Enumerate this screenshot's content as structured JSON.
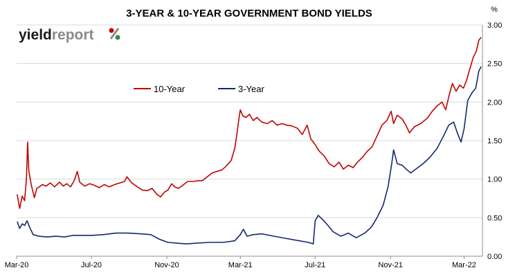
{
  "logo": {
    "part1": "yield",
    "part2": "report",
    "symbol": "%"
  },
  "colors": {
    "ten_year": "#c00000",
    "three_year": "#0f2a6b",
    "grid": "#d9d9d9",
    "logo_red": "#c00000",
    "logo_green": "#3a8a3a"
  },
  "chart_data": {
    "type": "line",
    "title": "3-YEAR & 10-YEAR GOVERNMENT BOND YIELDS",
    "unit_label": "%",
    "y_axis_side": "right",
    "ylim": [
      0,
      3.0
    ],
    "y_ticks": [
      "0.00",
      "0.50",
      "1.00",
      "1.50",
      "2.00",
      "2.50",
      "3.00"
    ],
    "x_ticks": [
      "Mar-20",
      "Jul-20",
      "Nov-20",
      "Mar-21",
      "Jul-21",
      "Nov-21",
      "Mar-22"
    ],
    "xlim": [
      "2020-03-01",
      "2022-03-31"
    ],
    "grid": "horizontal",
    "legend_position": "top-center",
    "series": [
      {
        "name": "10-Year",
        "points": [
          [
            "2020-03-02",
            0.8
          ],
          [
            "2020-03-06",
            0.62
          ],
          [
            "2020-03-10",
            0.78
          ],
          [
            "2020-03-14",
            0.72
          ],
          [
            "2020-03-17",
            1.0
          ],
          [
            "2020-03-19",
            1.48
          ],
          [
            "2020-03-21",
            1.1
          ],
          [
            "2020-03-25",
            0.92
          ],
          [
            "2020-03-30",
            0.76
          ],
          [
            "2020-04-03",
            0.88
          ],
          [
            "2020-04-07",
            0.9
          ],
          [
            "2020-04-12",
            0.93
          ],
          [
            "2020-04-18",
            0.91
          ],
          [
            "2020-04-25",
            0.95
          ],
          [
            "2020-05-02",
            0.9
          ],
          [
            "2020-05-10",
            0.96
          ],
          [
            "2020-05-16",
            0.91
          ],
          [
            "2020-05-22",
            0.94
          ],
          [
            "2020-05-28",
            0.9
          ],
          [
            "2020-06-03",
            0.98
          ],
          [
            "2020-06-08",
            1.1
          ],
          [
            "2020-06-12",
            0.96
          ],
          [
            "2020-06-20",
            0.91
          ],
          [
            "2020-06-28",
            0.94
          ],
          [
            "2020-07-06",
            0.92
          ],
          [
            "2020-07-14",
            0.89
          ],
          [
            "2020-07-22",
            0.93
          ],
          [
            "2020-07-30",
            0.9
          ],
          [
            "2020-08-08",
            0.93
          ],
          [
            "2020-08-16",
            0.95
          ],
          [
            "2020-08-24",
            0.97
          ],
          [
            "2020-08-28",
            1.03
          ],
          [
            "2020-09-05",
            0.95
          ],
          [
            "2020-09-14",
            0.9
          ],
          [
            "2020-09-22",
            0.86
          ],
          [
            "2020-09-30",
            0.85
          ],
          [
            "2020-10-08",
            0.88
          ],
          [
            "2020-10-16",
            0.8
          ],
          [
            "2020-10-22",
            0.77
          ],
          [
            "2020-10-28",
            0.83
          ],
          [
            "2020-11-03",
            0.86
          ],
          [
            "2020-11-09",
            0.94
          ],
          [
            "2020-11-14",
            0.9
          ],
          [
            "2020-11-20",
            0.88
          ],
          [
            "2020-11-27",
            0.92
          ],
          [
            "2020-12-05",
            0.97
          ],
          [
            "2020-12-14",
            0.97
          ],
          [
            "2020-12-22",
            0.98
          ],
          [
            "2020-12-29",
            0.98
          ],
          [
            "2021-01-06",
            1.03
          ],
          [
            "2021-01-14",
            1.08
          ],
          [
            "2021-01-22",
            1.1
          ],
          [
            "2021-01-30",
            1.12
          ],
          [
            "2021-02-06",
            1.17
          ],
          [
            "2021-02-14",
            1.24
          ],
          [
            "2021-02-20",
            1.4
          ],
          [
            "2021-02-24",
            1.62
          ],
          [
            "2021-02-27",
            1.8
          ],
          [
            "2021-03-01",
            1.9
          ],
          [
            "2021-03-05",
            1.82
          ],
          [
            "2021-03-10",
            1.8
          ],
          [
            "2021-03-16",
            1.84
          ],
          [
            "2021-03-22",
            1.76
          ],
          [
            "2021-03-28",
            1.8
          ],
          [
            "2021-04-05",
            1.74
          ],
          [
            "2021-04-14",
            1.72
          ],
          [
            "2021-04-22",
            1.76
          ],
          [
            "2021-04-30",
            1.7
          ],
          [
            "2021-05-08",
            1.72
          ],
          [
            "2021-05-16",
            1.7
          ],
          [
            "2021-05-24",
            1.69
          ],
          [
            "2021-06-02",
            1.66
          ],
          [
            "2021-06-10",
            1.58
          ],
          [
            "2021-06-18",
            1.7
          ],
          [
            "2021-06-24",
            1.52
          ],
          [
            "2021-06-30",
            1.46
          ],
          [
            "2021-07-08",
            1.36
          ],
          [
            "2021-07-16",
            1.3
          ],
          [
            "2021-07-24",
            1.2
          ],
          [
            "2021-08-01",
            1.16
          ],
          [
            "2021-08-09",
            1.22
          ],
          [
            "2021-08-16",
            1.13
          ],
          [
            "2021-08-24",
            1.18
          ],
          [
            "2021-09-01",
            1.15
          ],
          [
            "2021-09-08",
            1.22
          ],
          [
            "2021-09-16",
            1.28
          ],
          [
            "2021-09-24",
            1.36
          ],
          [
            "2021-10-02",
            1.42
          ],
          [
            "2021-10-10",
            1.56
          ],
          [
            "2021-10-18",
            1.7
          ],
          [
            "2021-10-26",
            1.76
          ],
          [
            "2021-11-02",
            1.88
          ],
          [
            "2021-11-06",
            1.72
          ],
          [
            "2021-11-12",
            1.83
          ],
          [
            "2021-11-20",
            1.78
          ],
          [
            "2021-11-26",
            1.7
          ],
          [
            "2021-12-02",
            1.6
          ],
          [
            "2021-12-10",
            1.68
          ],
          [
            "2021-12-20",
            1.72
          ],
          [
            "2021-12-31",
            1.79
          ],
          [
            "2022-01-08",
            1.88
          ],
          [
            "2022-01-16",
            1.95
          ],
          [
            "2022-01-24",
            2.0
          ],
          [
            "2022-01-30",
            1.9
          ],
          [
            "2022-02-05",
            2.1
          ],
          [
            "2022-02-10",
            2.24
          ],
          [
            "2022-02-16",
            2.14
          ],
          [
            "2022-02-22",
            2.22
          ],
          [
            "2022-02-28",
            2.18
          ],
          [
            "2022-03-05",
            2.28
          ],
          [
            "2022-03-10",
            2.42
          ],
          [
            "2022-03-16",
            2.58
          ],
          [
            "2022-03-21",
            2.66
          ],
          [
            "2022-03-25",
            2.8
          ],
          [
            "2022-03-29",
            2.84
          ]
        ]
      },
      {
        "name": "3-Year",
        "points": [
          [
            "2020-03-02",
            0.45
          ],
          [
            "2020-03-06",
            0.36
          ],
          [
            "2020-03-10",
            0.42
          ],
          [
            "2020-03-14",
            0.4
          ],
          [
            "2020-03-18",
            0.46
          ],
          [
            "2020-03-22",
            0.38
          ],
          [
            "2020-03-28",
            0.28
          ],
          [
            "2020-04-06",
            0.26
          ],
          [
            "2020-04-20",
            0.25
          ],
          [
            "2020-05-04",
            0.26
          ],
          [
            "2020-05-18",
            0.25
          ],
          [
            "2020-06-01",
            0.27
          ],
          [
            "2020-06-15",
            0.27
          ],
          [
            "2020-07-01",
            0.27
          ],
          [
            "2020-07-20",
            0.28
          ],
          [
            "2020-08-10",
            0.3
          ],
          [
            "2020-08-30",
            0.3
          ],
          [
            "2020-09-20",
            0.29
          ],
          [
            "2020-10-06",
            0.28
          ],
          [
            "2020-10-20",
            0.22
          ],
          [
            "2020-11-03",
            0.18
          ],
          [
            "2020-11-17",
            0.17
          ],
          [
            "2020-12-03",
            0.16
          ],
          [
            "2020-12-20",
            0.17
          ],
          [
            "2021-01-10",
            0.18
          ],
          [
            "2021-02-01",
            0.18
          ],
          [
            "2021-02-20",
            0.2
          ],
          [
            "2021-03-01",
            0.28
          ],
          [
            "2021-03-06",
            0.35
          ],
          [
            "2021-03-12",
            0.26
          ],
          [
            "2021-03-22",
            0.28
          ],
          [
            "2021-04-05",
            0.29
          ],
          [
            "2021-04-25",
            0.26
          ],
          [
            "2021-05-15",
            0.23
          ],
          [
            "2021-06-05",
            0.2
          ],
          [
            "2021-06-20",
            0.18
          ],
          [
            "2021-06-28",
            0.16
          ],
          [
            "2021-07-01",
            0.46
          ],
          [
            "2021-07-06",
            0.53
          ],
          [
            "2021-07-14",
            0.47
          ],
          [
            "2021-07-22",
            0.4
          ],
          [
            "2021-07-30",
            0.32
          ],
          [
            "2021-08-12",
            0.26
          ],
          [
            "2021-08-24",
            0.3
          ],
          [
            "2021-09-06",
            0.24
          ],
          [
            "2021-09-20",
            0.3
          ],
          [
            "2021-10-01",
            0.38
          ],
          [
            "2021-10-10",
            0.5
          ],
          [
            "2021-10-20",
            0.66
          ],
          [
            "2021-10-28",
            0.9
          ],
          [
            "2021-11-03",
            1.2
          ],
          [
            "2021-11-06",
            1.38
          ],
          [
            "2021-11-12",
            1.2
          ],
          [
            "2021-11-20",
            1.18
          ],
          [
            "2021-11-28",
            1.12
          ],
          [
            "2021-12-04",
            1.08
          ],
          [
            "2021-12-14",
            1.14
          ],
          [
            "2021-12-24",
            1.2
          ],
          [
            "2022-01-04",
            1.28
          ],
          [
            "2022-01-16",
            1.4
          ],
          [
            "2022-01-26",
            1.55
          ],
          [
            "2022-02-04",
            1.7
          ],
          [
            "2022-02-12",
            1.74
          ],
          [
            "2022-02-18",
            1.6
          ],
          [
            "2022-02-24",
            1.48
          ],
          [
            "2022-03-01",
            1.65
          ],
          [
            "2022-03-07",
            2.02
          ],
          [
            "2022-03-14",
            2.12
          ],
          [
            "2022-03-20",
            2.18
          ],
          [
            "2022-03-25",
            2.4
          ],
          [
            "2022-03-29",
            2.46
          ]
        ]
      }
    ]
  }
}
